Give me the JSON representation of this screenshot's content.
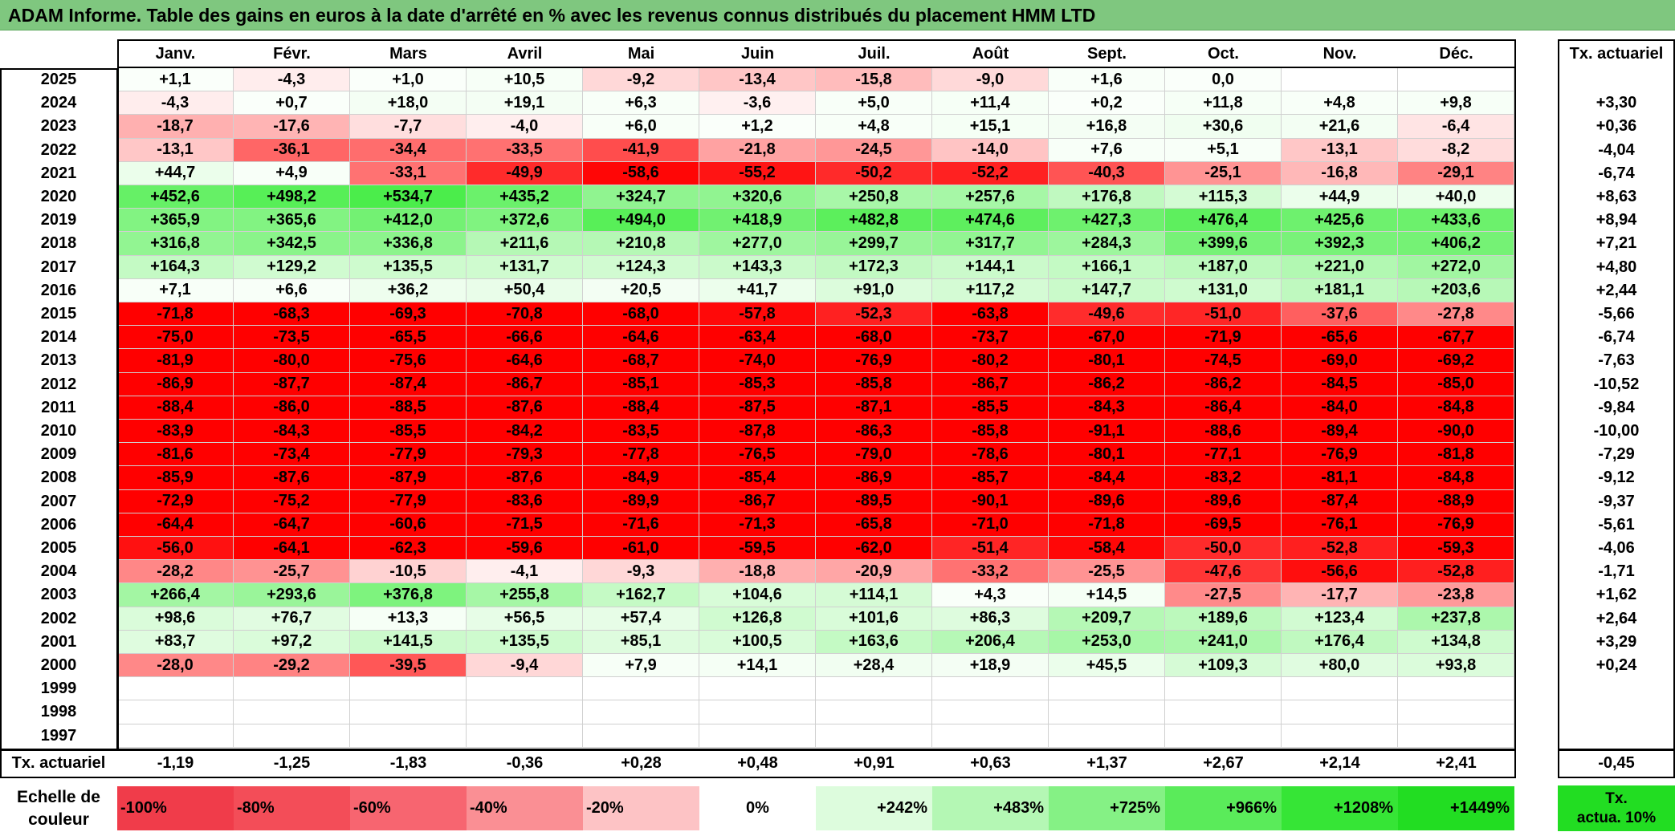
{
  "title": "ADAM Informe. Table des gains en euros à la date d'arrêté en % avec les revenus connus distribués du placement HMM LTD",
  "chart_data": {
    "type": "table",
    "months": [
      "Janv.",
      "Févr.",
      "Mars",
      "Avril",
      "Mai",
      "Juin",
      "Juil.",
      "Août",
      "Sept.",
      "Oct.",
      "Nov.",
      "Déc."
    ],
    "annual_header": "Tx. actuariel",
    "rows": [
      {
        "year": "2025",
        "values": [
          "+1,1",
          "-4,3",
          "+1,0",
          "+10,5",
          "-9,2",
          "-13,4",
          "-15,8",
          "-9,0",
          "+1,6",
          "0,0",
          "",
          ""
        ],
        "annual": ""
      },
      {
        "year": "2024",
        "values": [
          "-4,3",
          "+0,7",
          "+18,0",
          "+19,1",
          "+6,3",
          "-3,6",
          "+5,0",
          "+11,4",
          "+0,2",
          "+11,8",
          "+4,8",
          "+9,8"
        ],
        "annual": "+3,30"
      },
      {
        "year": "2023",
        "values": [
          "-18,7",
          "-17,6",
          "-7,7",
          "-4,0",
          "+6,0",
          "+1,2",
          "+4,8",
          "+15,1",
          "+16,8",
          "+30,6",
          "+21,6",
          "-6,4"
        ],
        "annual": "+0,36"
      },
      {
        "year": "2022",
        "values": [
          "-13,1",
          "-36,1",
          "-34,4",
          "-33,5",
          "-41,9",
          "-21,8",
          "-24,5",
          "-14,0",
          "+7,6",
          "+5,1",
          "-13,1",
          "-8,2"
        ],
        "annual": "-4,04"
      },
      {
        "year": "2021",
        "values": [
          "+44,7",
          "+4,9",
          "-33,1",
          "-49,9",
          "-58,6",
          "-55,2",
          "-50,2",
          "-52,2",
          "-40,3",
          "-25,1",
          "-16,8",
          "-29,1"
        ],
        "annual": "-6,74"
      },
      {
        "year": "2020",
        "values": [
          "+452,6",
          "+498,2",
          "+534,7",
          "+435,2",
          "+324,7",
          "+320,6",
          "+250,8",
          "+257,6",
          "+176,8",
          "+115,3",
          "+44,9",
          "+40,0"
        ],
        "annual": "+8,63"
      },
      {
        "year": "2019",
        "values": [
          "+365,9",
          "+365,6",
          "+412,0",
          "+372,6",
          "+494,0",
          "+418,9",
          "+482,8",
          "+474,6",
          "+427,3",
          "+476,4",
          "+425,6",
          "+433,6"
        ],
        "annual": "+8,94"
      },
      {
        "year": "2018",
        "values": [
          "+316,8",
          "+342,5",
          "+336,8",
          "+211,6",
          "+210,8",
          "+277,0",
          "+299,7",
          "+317,7",
          "+284,3",
          "+399,6",
          "+392,3",
          "+406,2"
        ],
        "annual": "+7,21"
      },
      {
        "year": "2017",
        "values": [
          "+164,3",
          "+129,2",
          "+135,5",
          "+131,7",
          "+124,3",
          "+143,3",
          "+172,3",
          "+144,1",
          "+166,1",
          "+187,0",
          "+221,0",
          "+272,0"
        ],
        "annual": "+4,80"
      },
      {
        "year": "2016",
        "values": [
          "+7,1",
          "+6,6",
          "+36,2",
          "+50,4",
          "+20,5",
          "+41,7",
          "+91,0",
          "+117,2",
          "+147,7",
          "+131,0",
          "+181,1",
          "+203,6"
        ],
        "annual": "+2,44"
      },
      {
        "year": "2015",
        "values": [
          "-71,8",
          "-68,3",
          "-69,3",
          "-70,8",
          "-68,0",
          "-57,8",
          "-52,3",
          "-63,8",
          "-49,6",
          "-51,0",
          "-37,6",
          "-27,8"
        ],
        "annual": "-5,66"
      },
      {
        "year": "2014",
        "values": [
          "-75,0",
          "-73,5",
          "-65,5",
          "-66,6",
          "-64,6",
          "-63,4",
          "-68,0",
          "-73,7",
          "-67,0",
          "-71,9",
          "-65,6",
          "-67,7"
        ],
        "annual": "-6,74"
      },
      {
        "year": "2013",
        "values": [
          "-81,9",
          "-80,0",
          "-75,6",
          "-64,6",
          "-68,7",
          "-74,0",
          "-76,9",
          "-80,2",
          "-80,1",
          "-74,5",
          "-69,0",
          "-69,2"
        ],
        "annual": "-7,63"
      },
      {
        "year": "2012",
        "values": [
          "-86,9",
          "-87,7",
          "-87,4",
          "-86,7",
          "-85,1",
          "-85,3",
          "-85,8",
          "-86,7",
          "-86,2",
          "-86,2",
          "-84,5",
          "-85,0"
        ],
        "annual": "-10,52"
      },
      {
        "year": "2011",
        "values": [
          "-88,4",
          "-86,0",
          "-88,5",
          "-87,6",
          "-88,4",
          "-87,5",
          "-87,1",
          "-85,5",
          "-84,3",
          "-86,4",
          "-84,0",
          "-84,8"
        ],
        "annual": "-9,84"
      },
      {
        "year": "2010",
        "values": [
          "-83,9",
          "-84,3",
          "-85,5",
          "-84,2",
          "-83,5",
          "-87,8",
          "-86,3",
          "-85,8",
          "-91,1",
          "-88,6",
          "-89,4",
          "-90,0"
        ],
        "annual": "-10,00"
      },
      {
        "year": "2009",
        "values": [
          "-81,6",
          "-73,4",
          "-77,9",
          "-79,3",
          "-77,8",
          "-76,5",
          "-79,0",
          "-78,6",
          "-80,1",
          "-77,1",
          "-76,9",
          "-81,8"
        ],
        "annual": "-7,29"
      },
      {
        "year": "2008",
        "values": [
          "-85,9",
          "-87,6",
          "-87,9",
          "-87,6",
          "-84,9",
          "-85,4",
          "-86,9",
          "-85,7",
          "-84,4",
          "-83,2",
          "-81,1",
          "-84,8"
        ],
        "annual": "-9,12"
      },
      {
        "year": "2007",
        "values": [
          "-72,9",
          "-75,2",
          "-77,9",
          "-83,6",
          "-89,9",
          "-86,7",
          "-89,5",
          "-90,1",
          "-89,6",
          "-89,6",
          "-87,4",
          "-88,9"
        ],
        "annual": "-9,37"
      },
      {
        "year": "2006",
        "values": [
          "-64,4",
          "-64,7",
          "-60,6",
          "-71,5",
          "-71,6",
          "-71,3",
          "-65,8",
          "-71,0",
          "-71,8",
          "-69,5",
          "-76,1",
          "-76,9"
        ],
        "annual": "-5,61"
      },
      {
        "year": "2005",
        "values": [
          "-56,0",
          "-64,1",
          "-62,3",
          "-59,6",
          "-61,0",
          "-59,5",
          "-62,0",
          "-51,4",
          "-58,4",
          "-50,0",
          "-52,8",
          "-59,3"
        ],
        "annual": "-4,06"
      },
      {
        "year": "2004",
        "values": [
          "-28,2",
          "-25,7",
          "-10,5",
          "-4,1",
          "-9,3",
          "-18,8",
          "-20,9",
          "-33,2",
          "-25,5",
          "-47,6",
          "-56,6",
          "-52,8"
        ],
        "annual": "-1,71"
      },
      {
        "year": "2003",
        "values": [
          "+266,4",
          "+293,6",
          "+376,8",
          "+255,8",
          "+162,7",
          "+104,6",
          "+114,1",
          "+4,3",
          "+14,5",
          "-27,5",
          "-17,7",
          "-23,8"
        ],
        "annual": "+1,62"
      },
      {
        "year": "2002",
        "values": [
          "+98,6",
          "+76,7",
          "+13,3",
          "+56,5",
          "+57,4",
          "+126,8",
          "+101,6",
          "+86,3",
          "+209,7",
          "+189,6",
          "+123,4",
          "+237,8"
        ],
        "annual": "+2,64"
      },
      {
        "year": "2001",
        "values": [
          "+83,7",
          "+97,2",
          "+141,5",
          "+135,5",
          "+85,1",
          "+100,5",
          "+163,6",
          "+206,4",
          "+253,0",
          "+241,0",
          "+176,4",
          "+134,8"
        ],
        "annual": "+3,29"
      },
      {
        "year": "2000",
        "values": [
          "-28,0",
          "-29,2",
          "-39,5",
          "-9,4",
          "+7,9",
          "+14,1",
          "+28,4",
          "+18,9",
          "+45,5",
          "+109,3",
          "+80,0",
          "+93,8"
        ],
        "annual": "+0,24"
      },
      {
        "year": "1999",
        "values": [
          "",
          "",
          "",
          "",
          "",
          "",
          "",
          "",
          "",
          "",
          "",
          ""
        ],
        "annual": ""
      },
      {
        "year": "1998",
        "values": [
          "",
          "",
          "",
          "",
          "",
          "",
          "",
          "",
          "",
          "",
          "",
          ""
        ],
        "annual": ""
      },
      {
        "year": "1997",
        "values": [
          "",
          "",
          "",
          "",
          "",
          "",
          "",
          "",
          "",
          "",
          "",
          ""
        ],
        "annual": ""
      }
    ],
    "totals": {
      "label": "Tx. actuariel",
      "values": [
        "-1,19",
        "-1,25",
        "-1,83",
        "-0,36",
        "+0,28",
        "+0,48",
        "+0,91",
        "+0,63",
        "+1,37",
        "+2,67",
        "+2,14",
        "+2,41"
      ],
      "overall": "-0,45"
    },
    "legend": {
      "label_line1": "Echelle de",
      "label_line2": "couleur",
      "steps": [
        "-100%",
        "-80%",
        "-60%",
        "-40%",
        "-20%",
        "0%",
        "+242%",
        "+483%",
        "+725%",
        "+966%",
        "+1208%",
        "+1449%"
      ],
      "step_colors": [
        "#f03c4a",
        "#f34d58",
        "#f76570",
        "#fa8f94",
        "#fdc3c5",
        "#ffffff",
        "#ddfcdd",
        "#b4f7b4",
        "#85f185",
        "#5aeb5a",
        "#36e536",
        "#22dd22"
      ],
      "actua_line1": "Tx.",
      "actua_line2": "actua. 10%",
      "actua_color": "#22dd22"
    }
  }
}
